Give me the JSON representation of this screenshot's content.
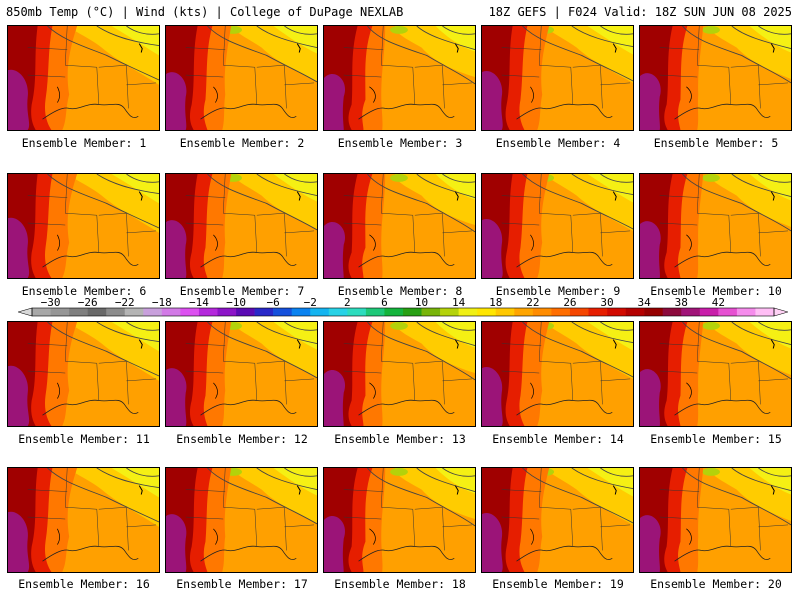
{
  "header": {
    "left": "850mb Temp (°C) | Wind (kts) | College of DuPage NEXLAB",
    "right": "18Z GEFS | F024 Valid: 18Z SUN JUN 08 2025"
  },
  "panels": [
    {
      "label": "Ensemble Member: 1"
    },
    {
      "label": "Ensemble Member: 2"
    },
    {
      "label": "Ensemble Member: 3"
    },
    {
      "label": "Ensemble Member: 4"
    },
    {
      "label": "Ensemble Member: 5"
    },
    {
      "label": "Ensemble Member: 6"
    },
    {
      "label": "Ensemble Member: 7"
    },
    {
      "label": "Ensemble Member: 8"
    },
    {
      "label": "Ensemble Member: 9"
    },
    {
      "label": "Ensemble Member: 10"
    },
    {
      "label": "Ensemble Member: 11"
    },
    {
      "label": "Ensemble Member: 12"
    },
    {
      "label": "Ensemble Member: 13"
    },
    {
      "label": "Ensemble Member: 14"
    },
    {
      "label": "Ensemble Member: 15"
    },
    {
      "label": "Ensemble Member: 16"
    },
    {
      "label": "Ensemble Member: 17"
    },
    {
      "label": "Ensemble Member: 18"
    },
    {
      "label": "Ensemble Member: 19"
    },
    {
      "label": "Ensemble Member: 20"
    }
  ],
  "colorbar": {
    "ticks": [
      "−30",
      "−26",
      "−22",
      "−18",
      "−14",
      "−10",
      "−6",
      "−2",
      "2",
      "6",
      "10",
      "14",
      "18",
      "22",
      "26",
      "30",
      "34",
      "38",
      "42"
    ],
    "colors": [
      "#a8a8a8",
      "#969696",
      "#7f7f7f",
      "#696969",
      "#8c8c8c",
      "#b4b4b4",
      "#c8a0dc",
      "#d27ae6",
      "#dc50f0",
      "#b428dc",
      "#8c14c8",
      "#5a0ab4",
      "#2828c8",
      "#1450dc",
      "#0a82f0",
      "#14b4f0",
      "#28d2e6",
      "#2ddcbe",
      "#1ec878",
      "#14b43c",
      "#28a014",
      "#78b40a",
      "#b4d20a",
      "#f0f014",
      "#ffe600",
      "#ffc800",
      "#ffa500",
      "#ff8c00",
      "#ff6e00",
      "#f54600",
      "#e61e00",
      "#d20a00",
      "#b40000",
      "#960000",
      "#8c0a3c",
      "#a01478",
      "#c81eaa",
      "#e650d2",
      "#f58cec",
      "#ffbef5"
    ]
  }
}
